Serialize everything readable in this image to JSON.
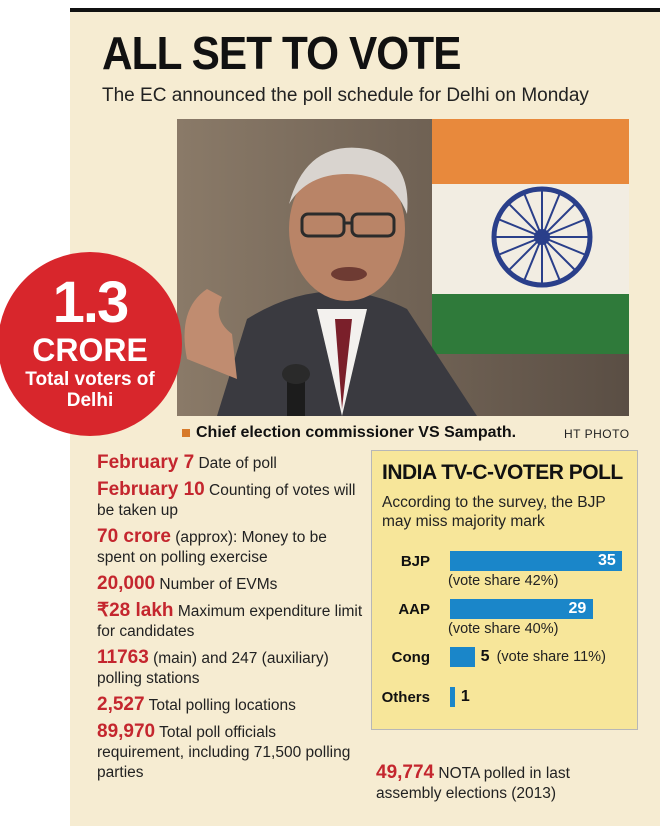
{
  "header": {
    "title": "ALL SET TO VOTE",
    "subtitle": "The EC announced the poll schedule for Delhi on Monday"
  },
  "badge": {
    "number": "1.3",
    "unit": "CRORE",
    "line1": "Total voters of",
    "line2": "Delhi"
  },
  "photo": {
    "caption": "Chief election commissioner VS Sampath.",
    "credit": "HT PHOTO"
  },
  "facts": [
    {
      "key": "February 7",
      "text": " Date of poll"
    },
    {
      "key": "February 10",
      "text": " Counting of votes will be taken up"
    },
    {
      "key": "70 crore",
      "text": " (approx): Money to be spent on polling exercise"
    },
    {
      "key": "20,000",
      "text": " Number of EVMs"
    },
    {
      "key": "₹28 lakh",
      "text": " Maximum expenditure limit for candidates"
    },
    {
      "key": "11763",
      "text": " (main) and 247 (auxiliary) polling stations"
    },
    {
      "key": "2,527",
      "text": " Total polling locations"
    },
    {
      "key": "89,970",
      "text": " Total poll officials requirement, including 71,500 polling parties"
    }
  ],
  "poll": {
    "title": "INDIA TV-C-VOTER POLL",
    "subtitle": "According to the survey, the BJP may miss majority mark"
  },
  "chart_data": {
    "type": "bar",
    "title": "INDIA TV-C-VOTER POLL",
    "categories": [
      "BJP",
      "AAP",
      "Cong",
      "Others"
    ],
    "values": [
      35,
      29,
      5,
      1
    ],
    "value_labels": [
      "35",
      "29",
      "5",
      "1"
    ],
    "vote_share": [
      "(vote share 42%)",
      "(vote share 40%)",
      "(vote share 11%)",
      ""
    ],
    "orientation": "horizontal",
    "bar_color": "#1a86c9",
    "xlim": [
      0,
      35
    ]
  },
  "nota": {
    "key": "49,774",
    "text": " NOTA polled in last assembly elections (2013)"
  },
  "colors": {
    "accent_red": "#d8262c",
    "panel_bg": "#f6ecd2",
    "poll_bg": "#f7e69a",
    "bar_blue": "#1a86c9"
  }
}
